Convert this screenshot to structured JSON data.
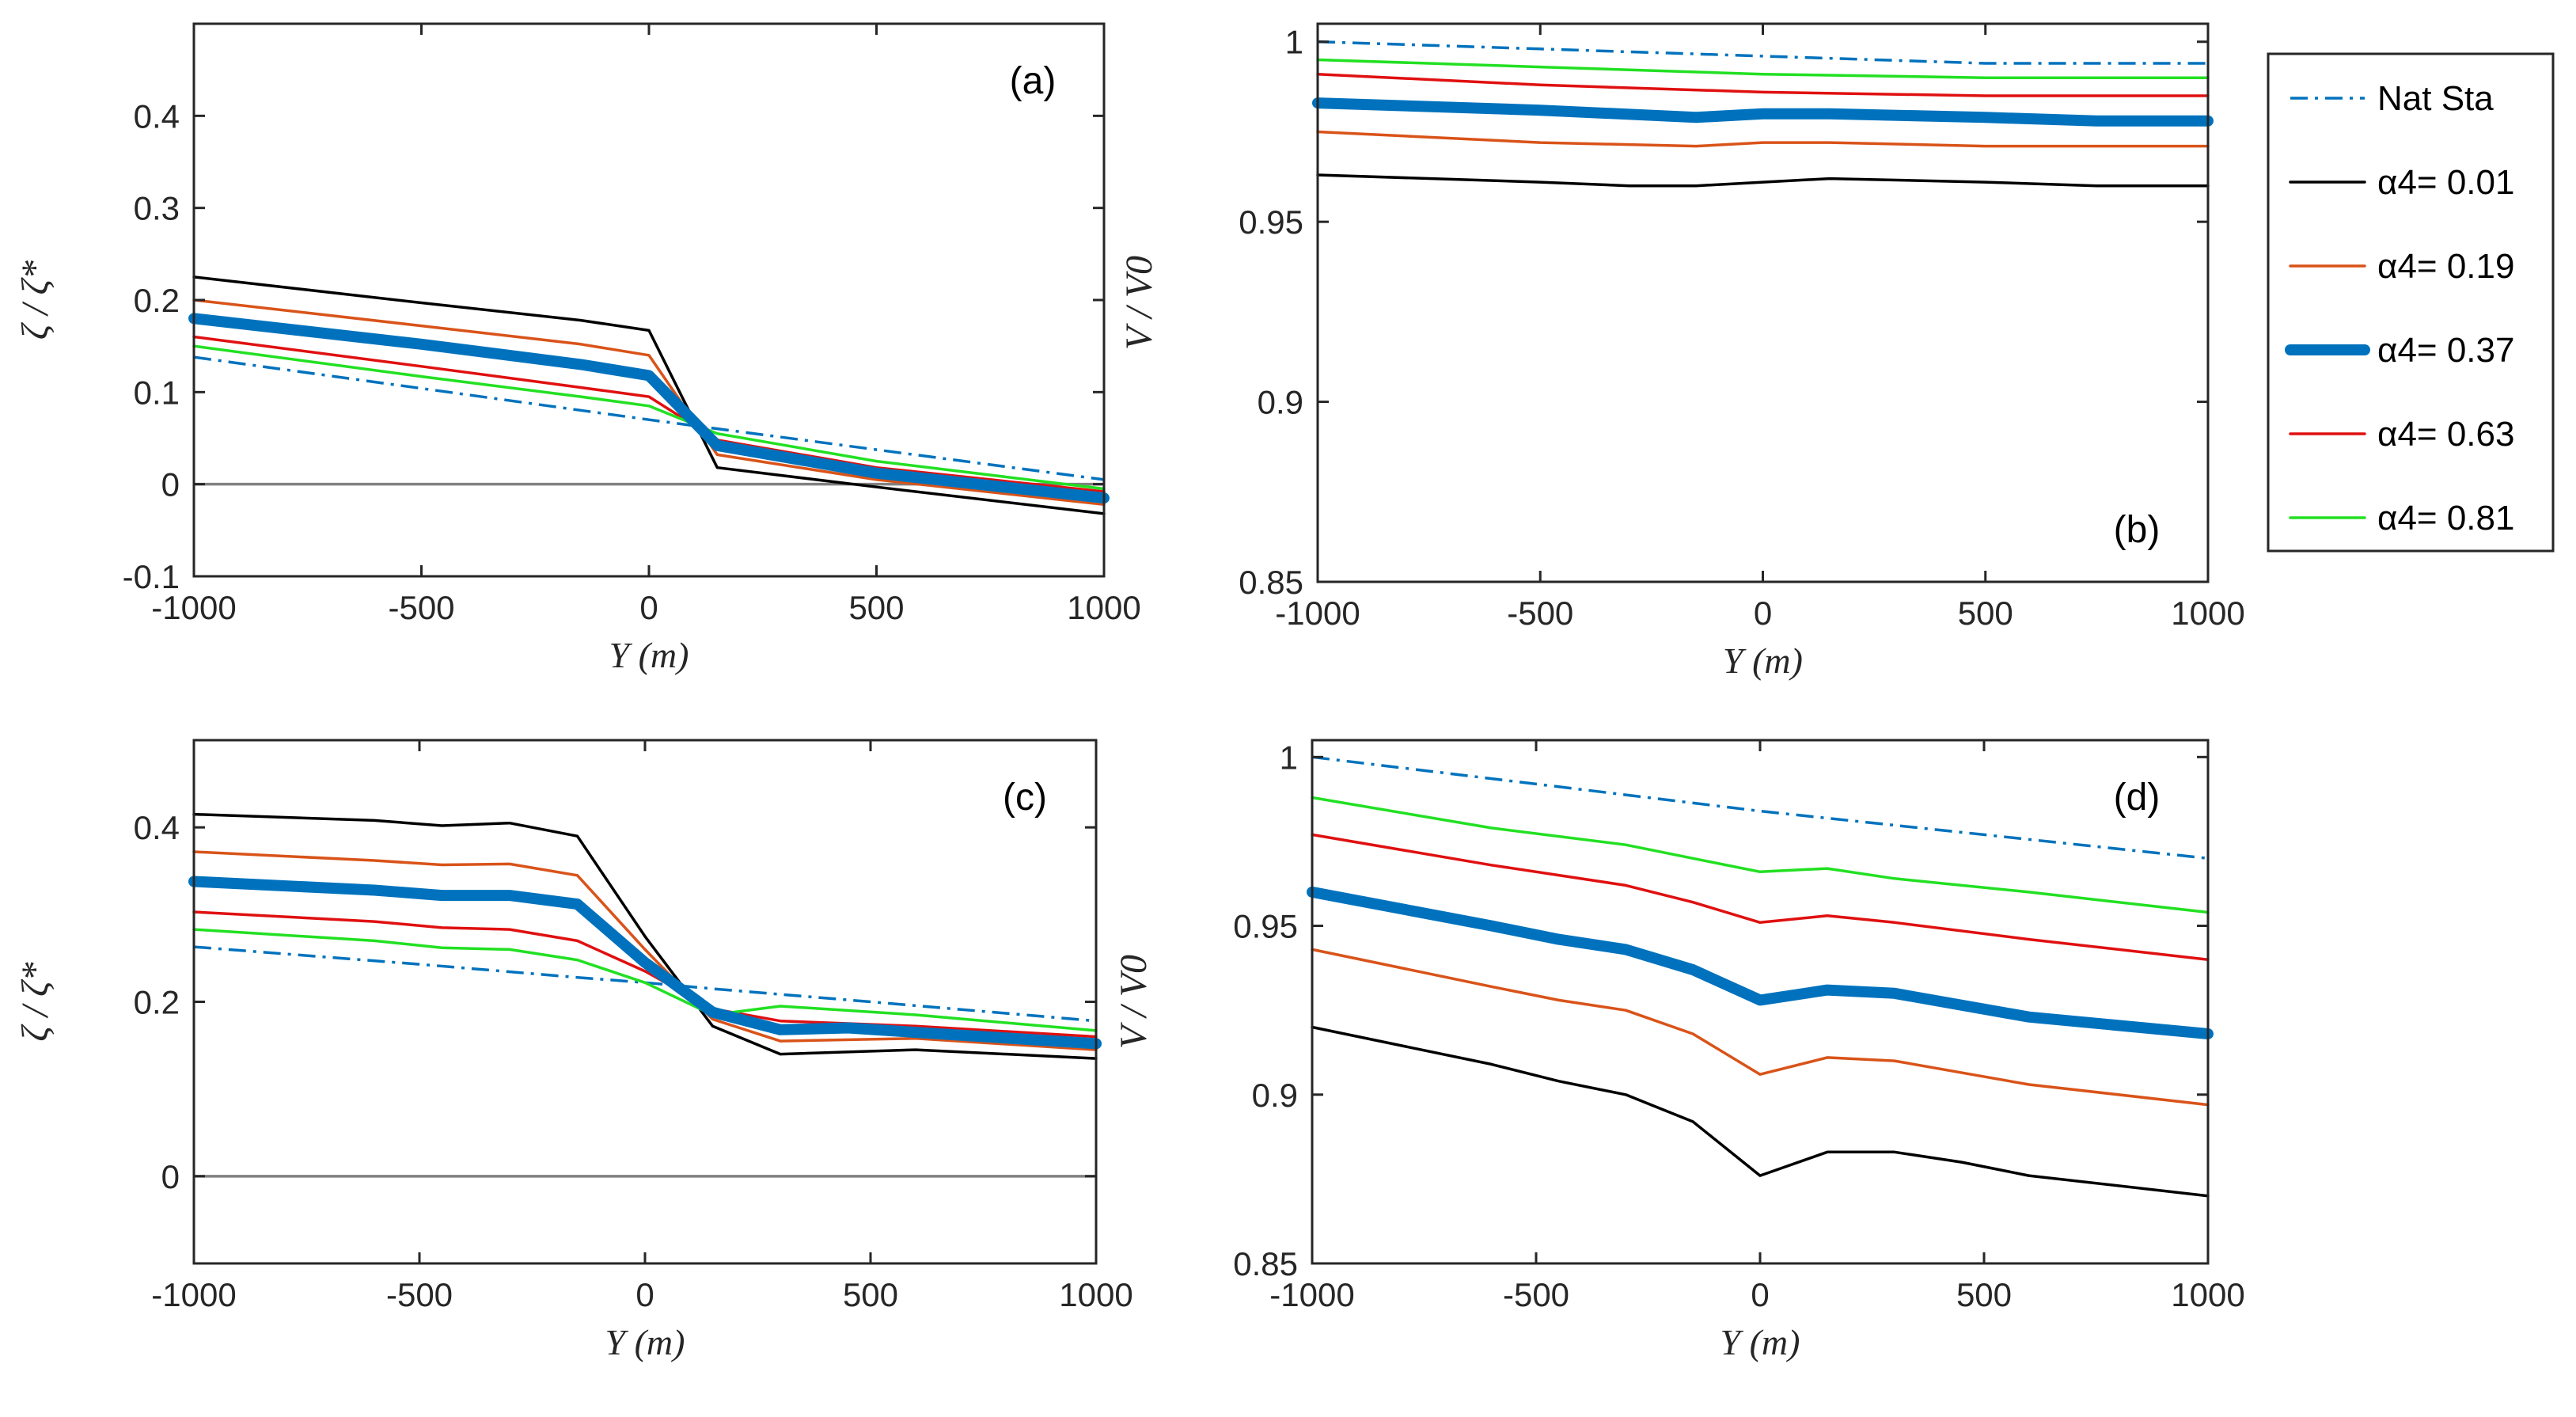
{
  "chart_data": [
    {
      "type": "line",
      "panel_label": "(a)",
      "xlabel": "Y (m)",
      "ylabel": "ζ / ζ*",
      "xlim": [
        -1000,
        1000
      ],
      "ylim": [
        -0.1,
        0.5
      ],
      "xticks": [
        -1000,
        -500,
        0,
        500,
        1000
      ],
      "yticks": [
        -0.1,
        0,
        0.1,
        0.2,
        0.3,
        0.4
      ],
      "ytick_labels": [
        "-0.1",
        "0",
        "0.1",
        "0.2",
        "0.3",
        "0.4"
      ],
      "zero_line": true,
      "series": [
        {
          "key": "nat",
          "points": [
            [
              -1000,
              0.138
            ],
            [
              0,
              0.07
            ],
            [
              1000,
              0.005
            ]
          ]
        },
        {
          "key": "a001",
          "points": [
            [
              -1000,
              0.225
            ],
            [
              -500,
              0.197
            ],
            [
              -150,
              0.178
            ],
            [
              0,
              0.167
            ],
            [
              150,
              0.018
            ],
            [
              500,
              -0.003
            ],
            [
              1000,
              -0.032
            ]
          ]
        },
        {
          "key": "a019",
          "points": [
            [
              -1000,
              0.2
            ],
            [
              -500,
              0.172
            ],
            [
              -150,
              0.152
            ],
            [
              0,
              0.14
            ],
            [
              150,
              0.032
            ],
            [
              500,
              0.005
            ],
            [
              1000,
              -0.022
            ]
          ]
        },
        {
          "key": "a037",
          "points": [
            [
              -1000,
              0.18
            ],
            [
              -500,
              0.152
            ],
            [
              -150,
              0.13
            ],
            [
              0,
              0.118
            ],
            [
              150,
              0.042
            ],
            [
              500,
              0.012
            ],
            [
              1000,
              -0.015
            ]
          ]
        },
        {
          "key": "a063",
          "points": [
            [
              -1000,
              0.16
            ],
            [
              -500,
              0.128
            ],
            [
              -150,
              0.105
            ],
            [
              0,
              0.095
            ],
            [
              150,
              0.048
            ],
            [
              500,
              0.018
            ],
            [
              1000,
              -0.008
            ]
          ]
        },
        {
          "key": "a081",
          "points": [
            [
              -1000,
              0.15
            ],
            [
              -500,
              0.117
            ],
            [
              -150,
              0.095
            ],
            [
              0,
              0.085
            ],
            [
              150,
              0.055
            ],
            [
              500,
              0.025
            ],
            [
              1000,
              -0.005
            ]
          ]
        }
      ]
    },
    {
      "type": "line",
      "panel_label": "(b)",
      "xlabel": "Y (m)",
      "ylabel": "V / V0",
      "xlim": [
        -1000,
        1000
      ],
      "ylim": [
        0.85,
        1.005
      ],
      "xticks": [
        -1000,
        -500,
        0,
        500,
        1000
      ],
      "yticks": [
        0.85,
        0.9,
        0.95,
        1
      ],
      "ytick_labels": [
        "0.85",
        "0.9",
        "0.95",
        "1"
      ],
      "zero_line": false,
      "series": [
        {
          "key": "nat",
          "points": [
            [
              -1000,
              1.0
            ],
            [
              -500,
              0.998
            ],
            [
              0,
              0.996
            ],
            [
              500,
              0.994
            ],
            [
              1000,
              0.994
            ]
          ]
        },
        {
          "key": "a001",
          "points": [
            [
              -1000,
              0.963
            ],
            [
              -500,
              0.961
            ],
            [
              -300,
              0.96
            ],
            [
              -150,
              0.96
            ],
            [
              0,
              0.961
            ],
            [
              150,
              0.962
            ],
            [
              500,
              0.961
            ],
            [
              750,
              0.96
            ],
            [
              1000,
              0.96
            ]
          ]
        },
        {
          "key": "a019",
          "points": [
            [
              -1000,
              0.975
            ],
            [
              -500,
              0.972
            ],
            [
              -150,
              0.971
            ],
            [
              0,
              0.972
            ],
            [
              150,
              0.972
            ],
            [
              500,
              0.971
            ],
            [
              1000,
              0.971
            ]
          ]
        },
        {
          "key": "a037",
          "points": [
            [
              -1000,
              0.983
            ],
            [
              -500,
              0.981
            ],
            [
              -150,
              0.979
            ],
            [
              0,
              0.98
            ],
            [
              150,
              0.98
            ],
            [
              500,
              0.979
            ],
            [
              750,
              0.978
            ],
            [
              1000,
              0.978
            ]
          ]
        },
        {
          "key": "a063",
          "points": [
            [
              -1000,
              0.991
            ],
            [
              -500,
              0.988
            ],
            [
              0,
              0.986
            ],
            [
              500,
              0.985
            ],
            [
              1000,
              0.985
            ]
          ]
        },
        {
          "key": "a081",
          "points": [
            [
              -1000,
              0.995
            ],
            [
              -500,
              0.993
            ],
            [
              0,
              0.991
            ],
            [
              500,
              0.99
            ],
            [
              1000,
              0.99
            ]
          ]
        }
      ]
    },
    {
      "type": "line",
      "panel_label": "(c)",
      "xlabel": "Y (m)",
      "ylabel": "ζ / ζ*",
      "xlim": [
        -1000,
        1000
      ],
      "ylim": [
        -0.1,
        0.5
      ],
      "xticks": [
        -1000,
        -500,
        0,
        500,
        1000
      ],
      "yticks": [
        0,
        0.2,
        0.4
      ],
      "ytick_labels": [
        "0",
        "0.2",
        "0.4"
      ],
      "zero_line": true,
      "series": [
        {
          "key": "nat",
          "points": [
            [
              -1000,
              0.263
            ],
            [
              -500,
              0.243
            ],
            [
              -150,
              0.228
            ],
            [
              0,
              0.222
            ],
            [
              150,
              0.215
            ],
            [
              500,
              0.2
            ],
            [
              1000,
              0.178
            ]
          ]
        },
        {
          "key": "a001",
          "points": [
            [
              -1000,
              0.415
            ],
            [
              -600,
              0.408
            ],
            [
              -450,
              0.402
            ],
            [
              -300,
              0.405
            ],
            [
              -150,
              0.39
            ],
            [
              0,
              0.275
            ],
            [
              150,
              0.172
            ],
            [
              300,
              0.14
            ],
            [
              600,
              0.145
            ],
            [
              1000,
              0.135
            ]
          ]
        },
        {
          "key": "a019",
          "points": [
            [
              -1000,
              0.372
            ],
            [
              -600,
              0.362
            ],
            [
              -450,
              0.357
            ],
            [
              -300,
              0.358
            ],
            [
              -150,
              0.345
            ],
            [
              0,
              0.26
            ],
            [
              150,
              0.18
            ],
            [
              300,
              0.155
            ],
            [
              600,
              0.158
            ],
            [
              1000,
              0.145
            ]
          ]
        },
        {
          "key": "a037",
          "points": [
            [
              -1000,
              0.338
            ],
            [
              -600,
              0.328
            ],
            [
              -450,
              0.322
            ],
            [
              -300,
              0.322
            ],
            [
              -150,
              0.312
            ],
            [
              0,
              0.245
            ],
            [
              150,
              0.188
            ],
            [
              300,
              0.168
            ],
            [
              450,
              0.17
            ],
            [
              600,
              0.165
            ],
            [
              1000,
              0.152
            ]
          ]
        },
        {
          "key": "a063",
          "points": [
            [
              -1000,
              0.303
            ],
            [
              -600,
              0.292
            ],
            [
              -450,
              0.285
            ],
            [
              -300,
              0.283
            ],
            [
              -150,
              0.27
            ],
            [
              0,
              0.235
            ],
            [
              150,
              0.192
            ],
            [
              300,
              0.178
            ],
            [
              600,
              0.172
            ],
            [
              1000,
              0.16
            ]
          ]
        },
        {
          "key": "a081",
          "points": [
            [
              -1000,
              0.283
            ],
            [
              -600,
              0.27
            ],
            [
              -450,
              0.262
            ],
            [
              -300,
              0.26
            ],
            [
              -150,
              0.248
            ],
            [
              0,
              0.222
            ],
            [
              150,
              0.185
            ],
            [
              300,
              0.195
            ],
            [
              600,
              0.185
            ],
            [
              1000,
              0.167
            ]
          ]
        }
      ]
    },
    {
      "type": "line",
      "panel_label": "(d)",
      "xlabel": "Y (m)",
      "ylabel": "V / V0",
      "xlim": [
        -1000,
        1000
      ],
      "ylim": [
        0.85,
        1.005
      ],
      "xticks": [
        -1000,
        -500,
        0,
        500,
        1000
      ],
      "yticks": [
        0.85,
        0.9,
        0.95,
        1
      ],
      "ytick_labels": [
        "0.85",
        "0.9",
        "0.95",
        "1"
      ],
      "zero_line": false,
      "series": [
        {
          "key": "nat",
          "points": [
            [
              -1000,
              1.0
            ],
            [
              -500,
              0.992
            ],
            [
              0,
              0.984
            ],
            [
              500,
              0.977
            ],
            [
              1000,
              0.97
            ]
          ]
        },
        {
          "key": "a001",
          "points": [
            [
              -1000,
              0.92
            ],
            [
              -600,
              0.909
            ],
            [
              -450,
              0.904
            ],
            [
              -300,
              0.9
            ],
            [
              -150,
              0.892
            ],
            [
              0,
              0.876
            ],
            [
              150,
              0.883
            ],
            [
              300,
              0.883
            ],
            [
              450,
              0.88
            ],
            [
              600,
              0.876
            ],
            [
              1000,
              0.87
            ]
          ]
        },
        {
          "key": "a019",
          "points": [
            [
              -1000,
              0.943
            ],
            [
              -600,
              0.932
            ],
            [
              -450,
              0.928
            ],
            [
              -300,
              0.925
            ],
            [
              -150,
              0.918
            ],
            [
              0,
              0.906
            ],
            [
              150,
              0.911
            ],
            [
              300,
              0.91
            ],
            [
              600,
              0.903
            ],
            [
              1000,
              0.897
            ]
          ]
        },
        {
          "key": "a037",
          "points": [
            [
              -1000,
              0.96
            ],
            [
              -600,
              0.95
            ],
            [
              -450,
              0.946
            ],
            [
              -300,
              0.943
            ],
            [
              -150,
              0.937
            ],
            [
              0,
              0.928
            ],
            [
              150,
              0.931
            ],
            [
              300,
              0.93
            ],
            [
              600,
              0.923
            ],
            [
              1000,
              0.918
            ]
          ]
        },
        {
          "key": "a063",
          "points": [
            [
              -1000,
              0.977
            ],
            [
              -600,
              0.968
            ],
            [
              -300,
              0.962
            ],
            [
              -150,
              0.957
            ],
            [
              0,
              0.951
            ],
            [
              150,
              0.953
            ],
            [
              300,
              0.951
            ],
            [
              600,
              0.946
            ],
            [
              1000,
              0.94
            ]
          ]
        },
        {
          "key": "a081",
          "points": [
            [
              -1000,
              0.988
            ],
            [
              -600,
              0.979
            ],
            [
              -300,
              0.974
            ],
            [
              -150,
              0.97
            ],
            [
              0,
              0.966
            ],
            [
              150,
              0.967
            ],
            [
              300,
              0.964
            ],
            [
              600,
              0.96
            ],
            [
              1000,
              0.954
            ]
          ]
        }
      ]
    }
  ],
  "legend": {
    "position": "right",
    "entries": [
      {
        "key": "nat",
        "label": "Nat Sta",
        "color": "#0072BD",
        "style": "dashdot"
      },
      {
        "key": "a001",
        "label": "α4= 0.01",
        "color": "#000000",
        "style": "solid"
      },
      {
        "key": "a019",
        "label": "α4= 0.19",
        "color": "#D95319",
        "style": "solid"
      },
      {
        "key": "a037",
        "label": "α4= 0.37",
        "color": "#0072BD",
        "style": "thick"
      },
      {
        "key": "a063",
        "label": "α4= 0.63",
        "color": "#E01010",
        "style": "solid"
      },
      {
        "key": "a081",
        "label": "α4= 0.81",
        "color": "#22E022",
        "style": "solid"
      }
    ]
  }
}
